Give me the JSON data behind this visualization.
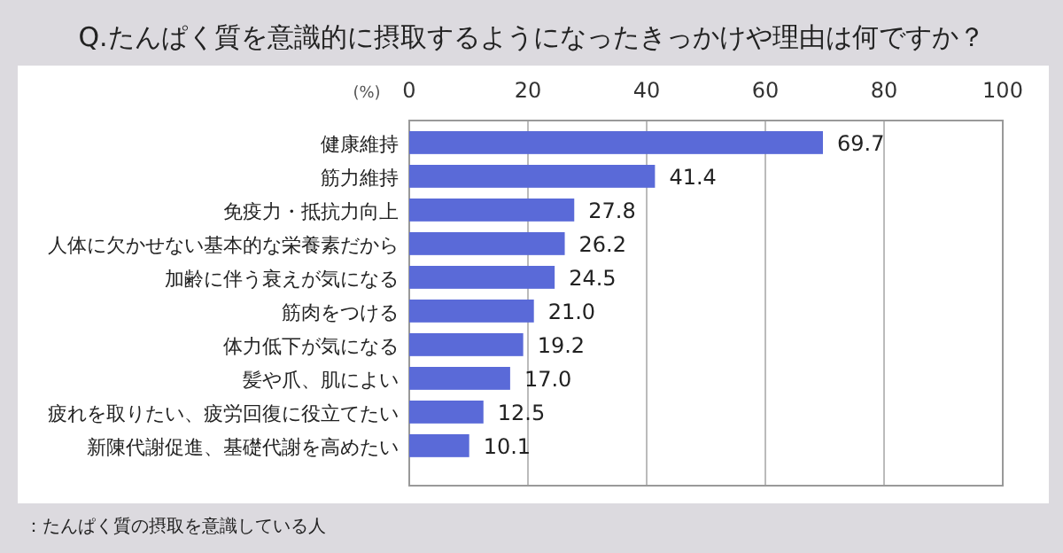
{
  "chart_data": {
    "type": "bar",
    "orientation": "horizontal",
    "title": "Q.たんぱく質を意識的に摂取するようになったきっかけや理由は何ですか？",
    "xlabel": "(%)",
    "categories": [
      "健康維持",
      "筋力維持",
      "免疫力・抵抗力向上",
      "人体に欠かせない基本的な栄養素だから",
      "加齢に伴う衰えが気になる",
      "筋肉をつける",
      "体力低下が気になる",
      "髪や爪、肌によい",
      "疲れを取りたい、疲労回復に役立てたい",
      "新陳代謝促進、基礎代謝を高めたい"
    ],
    "values": [
      69.7,
      41.4,
      27.8,
      26.2,
      24.5,
      21.0,
      19.2,
      17.0,
      12.5,
      10.1
    ],
    "color": "#5a6ad8",
    "xlim": [
      0,
      100
    ],
    "xticks": [
      0,
      20,
      40,
      60,
      80,
      100
    ],
    "grid": "x",
    "value_labels": [
      "69.7",
      "41.4",
      "27.8",
      "26.2",
      "24.5",
      "21.0",
      "19.2",
      "17.0",
      "12.5",
      "10.1"
    ],
    "annotations": [
      "：たんぱく質の摂取を意識している人"
    ]
  }
}
